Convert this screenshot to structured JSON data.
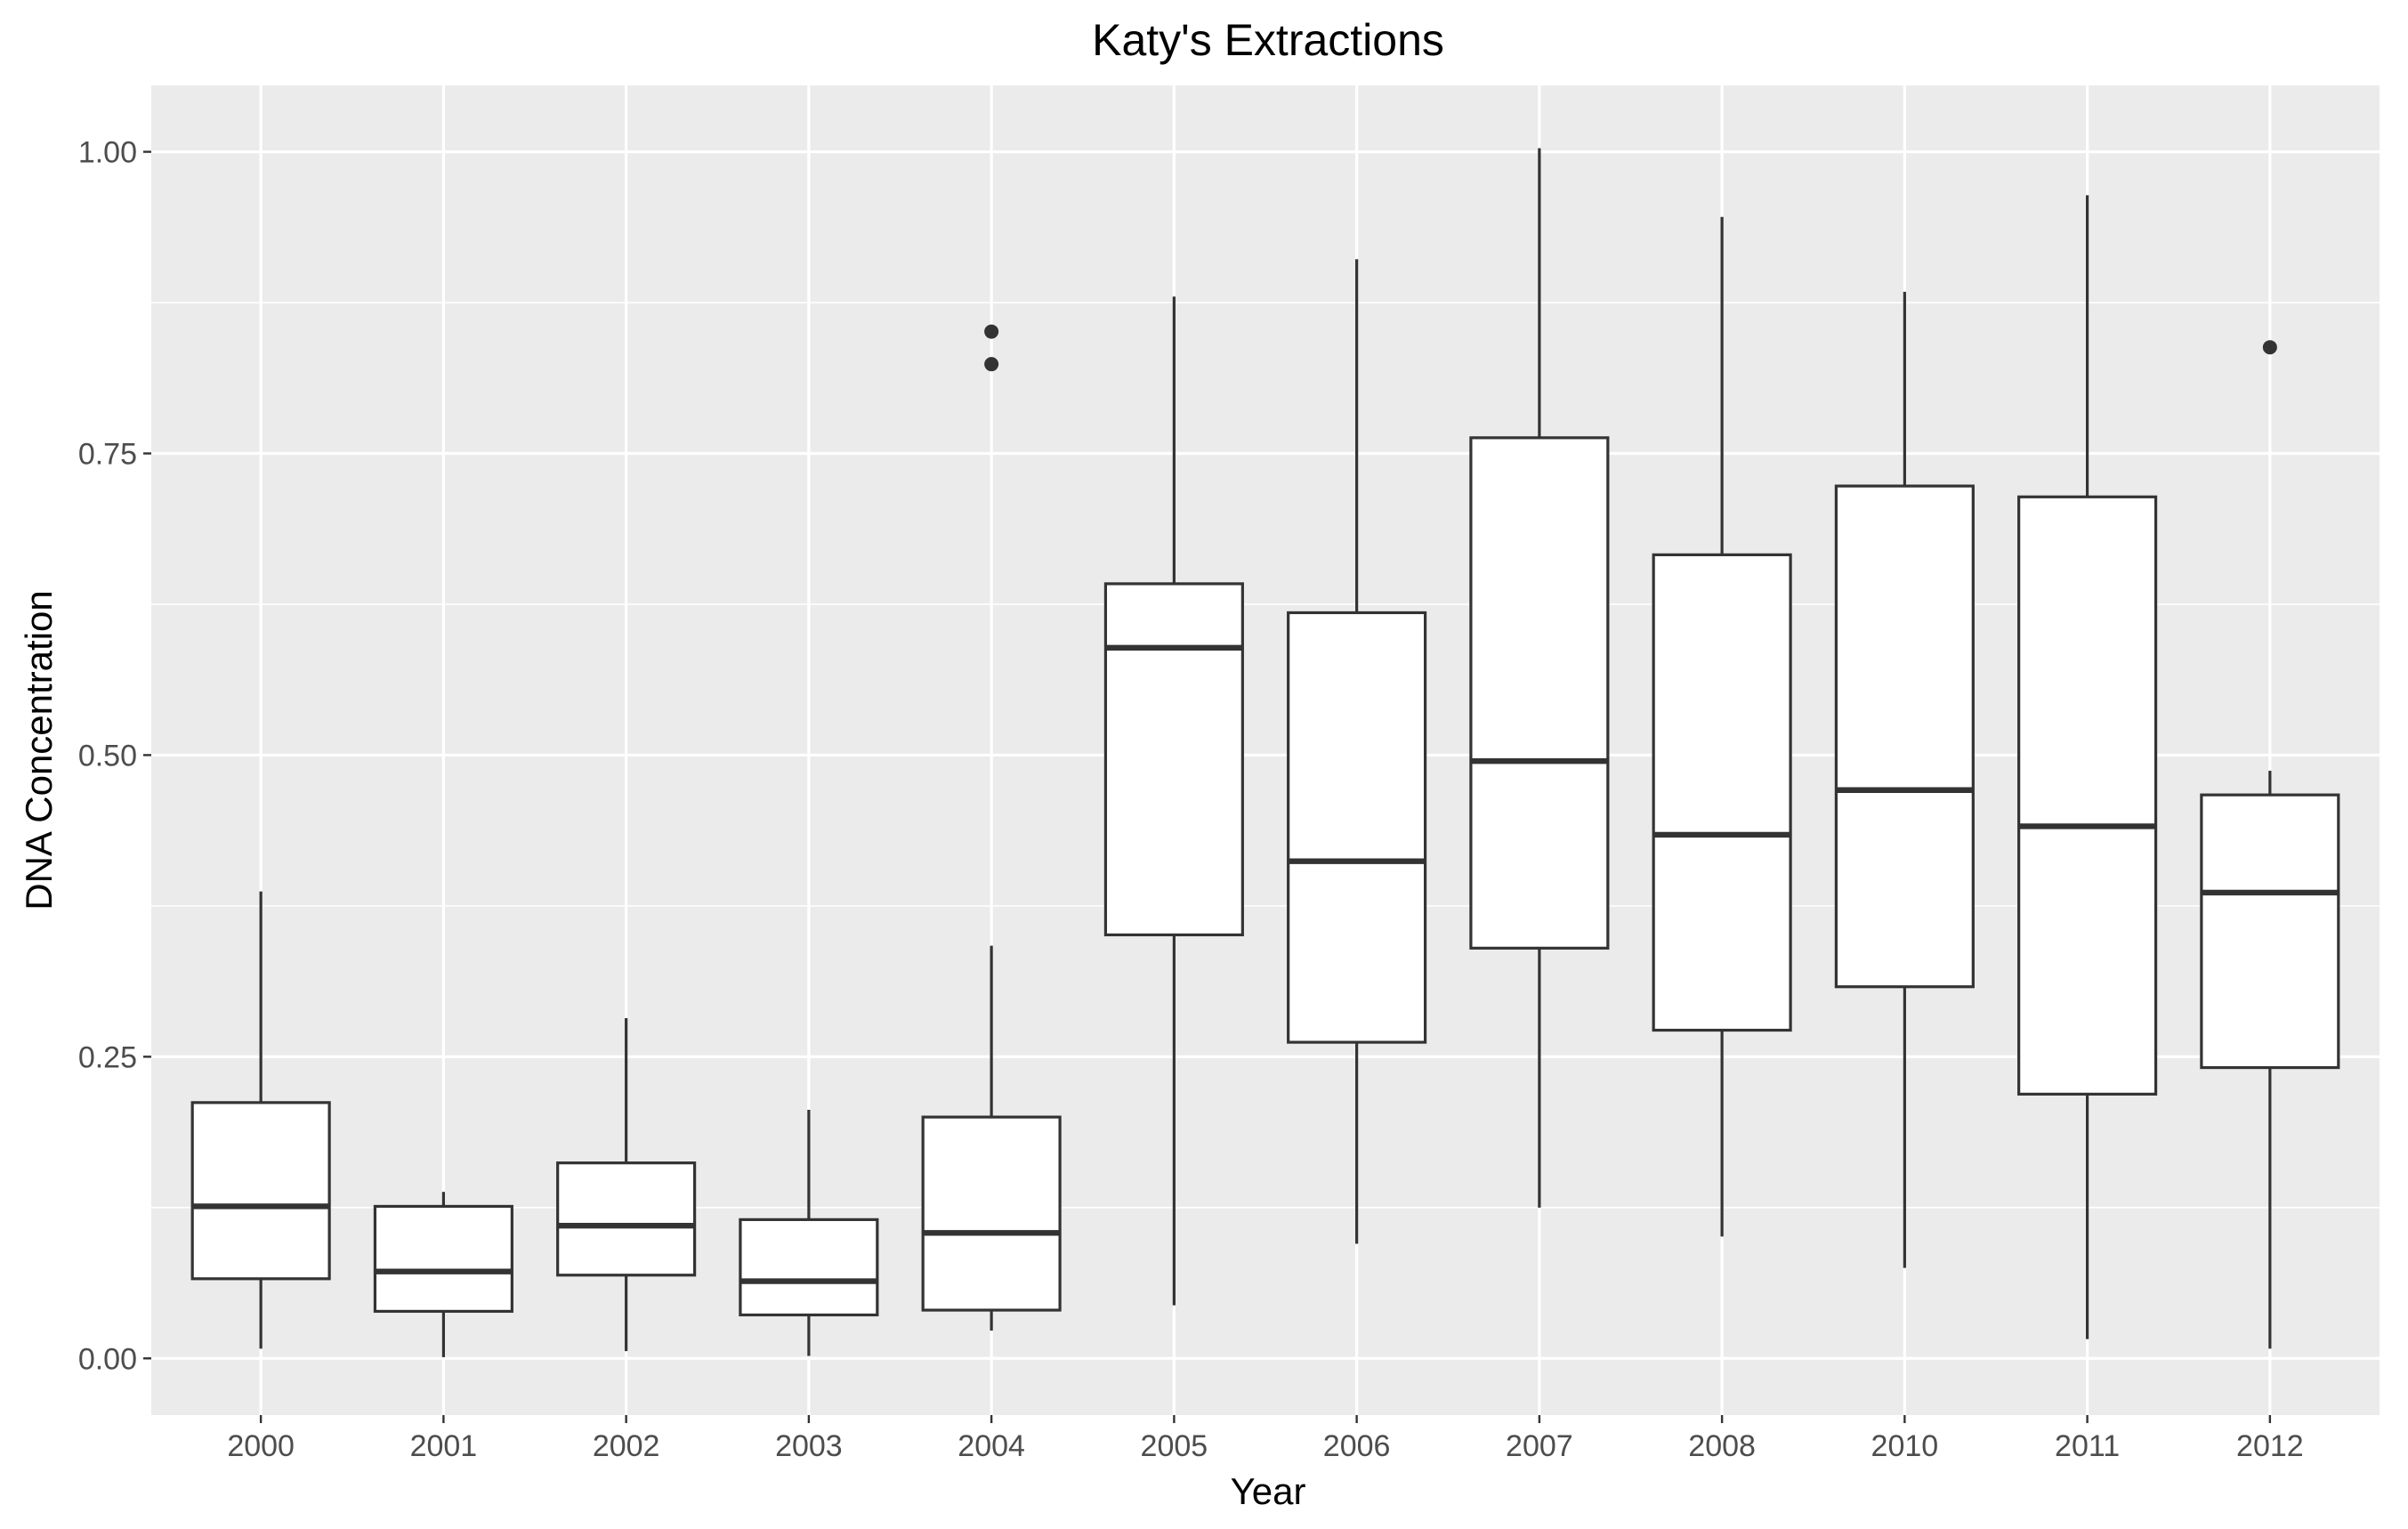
{
  "chart_data": {
    "type": "boxplot",
    "title": "Katy's Extractions",
    "xlabel": "Year",
    "ylabel": "DNA Concentration",
    "ylim": [
      -0.047,
      1.055
    ],
    "y_ticks": [
      0.0,
      0.25,
      0.5,
      0.75,
      1.0
    ],
    "y_tick_labels": [
      "0.00",
      "0.25",
      "0.50",
      "0.75",
      "1.00"
    ],
    "grid": true,
    "legend": "none",
    "categories": [
      "2000",
      "2001",
      "2002",
      "2003",
      "2004",
      "2005",
      "2006",
      "2007",
      "2008",
      "2010",
      "2011",
      "2012"
    ],
    "boxes": [
      {
        "category": "2000",
        "min": 0.008,
        "q1": 0.066,
        "median": 0.126,
        "q3": 0.212,
        "max": 0.387,
        "outliers": []
      },
      {
        "category": "2001",
        "min": 0.001,
        "q1": 0.039,
        "median": 0.072,
        "q3": 0.126,
        "max": 0.138,
        "outliers": []
      },
      {
        "category": "2002",
        "min": 0.006,
        "q1": 0.069,
        "median": 0.11,
        "q3": 0.162,
        "max": 0.282,
        "outliers": []
      },
      {
        "category": "2003",
        "min": 0.002,
        "q1": 0.036,
        "median": 0.064,
        "q3": 0.115,
        "max": 0.206,
        "outliers": []
      },
      {
        "category": "2004",
        "min": 0.023,
        "q1": 0.04,
        "median": 0.104,
        "q3": 0.2,
        "max": 0.342,
        "outliers": [
          0.851,
          0.824
        ]
      },
      {
        "category": "2005",
        "min": 0.044,
        "q1": 0.351,
        "median": 0.589,
        "q3": 0.642,
        "max": 0.88,
        "outliers": []
      },
      {
        "category": "2006",
        "min": 0.095,
        "q1": 0.262,
        "median": 0.412,
        "q3": 0.618,
        "max": 0.911,
        "outliers": []
      },
      {
        "category": "2007",
        "min": 0.125,
        "q1": 0.34,
        "median": 0.495,
        "q3": 0.763,
        "max": 1.003,
        "outliers": []
      },
      {
        "category": "2008",
        "min": 0.101,
        "q1": 0.272,
        "median": 0.434,
        "q3": 0.666,
        "max": 0.946,
        "outliers": []
      },
      {
        "category": "2010",
        "min": 0.075,
        "q1": 0.308,
        "median": 0.471,
        "q3": 0.723,
        "max": 0.884,
        "outliers": []
      },
      {
        "category": "2011",
        "min": 0.016,
        "q1": 0.219,
        "median": 0.441,
        "q3": 0.714,
        "max": 0.964,
        "outliers": []
      },
      {
        "category": "2012",
        "min": 0.008,
        "q1": 0.241,
        "median": 0.386,
        "q3": 0.467,
        "max": 0.487,
        "outliers": [
          0.838
        ]
      }
    ],
    "colors": {
      "panel": "#ebebeb",
      "grid": "#ffffff",
      "box_fill": "#ffffff",
      "box_line": "#333333",
      "tick_text": "#4d4d4d"
    }
  }
}
